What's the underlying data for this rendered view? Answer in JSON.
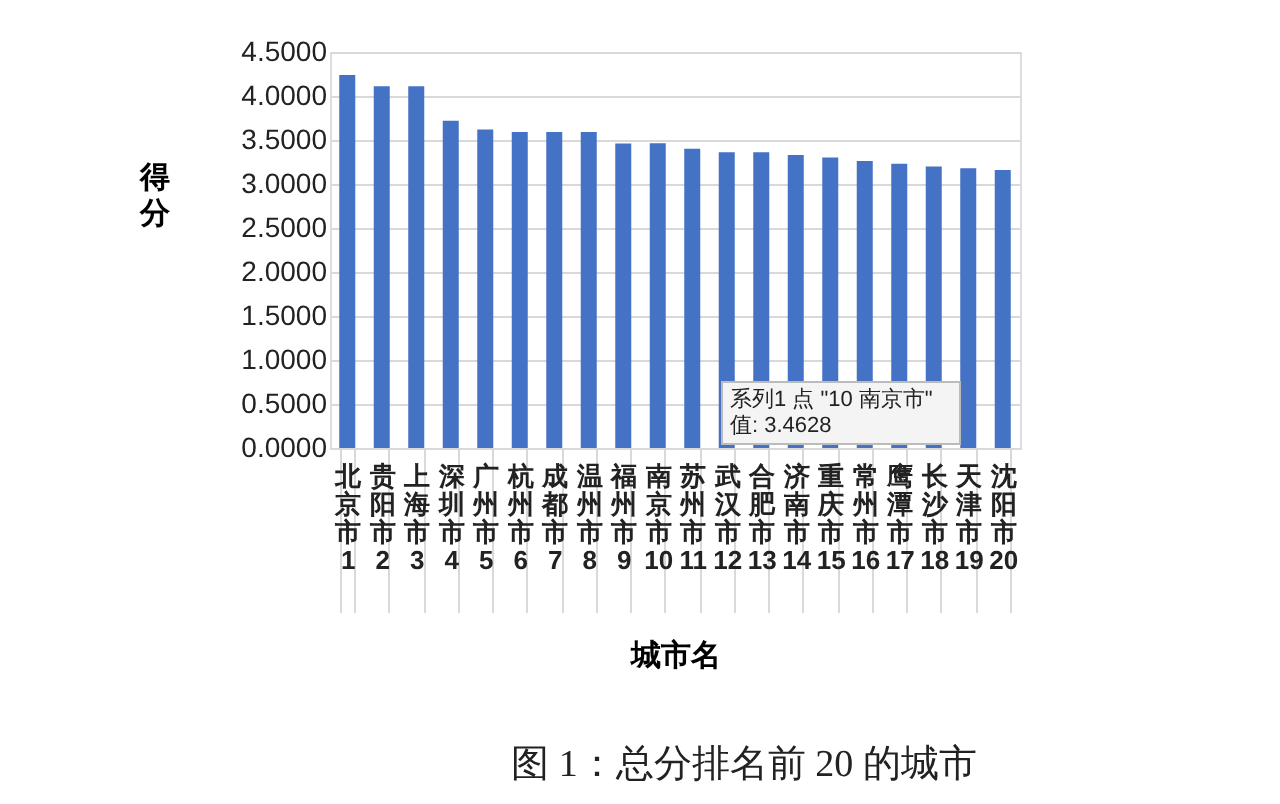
{
  "chart_data": {
    "type": "bar",
    "xlabel": "城市名",
    "ylabel": "得分",
    "categories": [
      "北京市\n1",
      "贵阳市\n2",
      "上海市\n3",
      "深圳市\n4",
      "广州市\n5",
      "杭州市\n6",
      "成都市\n7",
      "温州市\n8",
      "福州市\n9",
      "南京市\n10",
      "苏州市\n11",
      "武汉市\n12",
      "合肥市\n13",
      "济南市\n14",
      "重庆市\n15",
      "常州市\n16",
      "鹰潭市\n17",
      "长沙市\n18",
      "天津市\n19",
      "沈阳市\n20"
    ],
    "values": [
      4.24,
      4.11,
      4.11,
      3.72,
      3.62,
      3.59,
      3.59,
      3.59,
      3.46,
      3.4628,
      3.4,
      3.36,
      3.36,
      3.33,
      3.3,
      3.26,
      3.23,
      3.2,
      3.18,
      3.16
    ],
    "color": "#4472c4",
    "ylim": [
      0,
      4.5
    ],
    "yticks": [
      {
        "value": 0,
        "label": "0.0000"
      },
      {
        "value": 0.5,
        "label": "0.5000"
      },
      {
        "value": 1,
        "label": "1.0000"
      },
      {
        "value": 1.5,
        "label": "1.5000"
      },
      {
        "value": 2,
        "label": "2.0000"
      },
      {
        "value": 2.5,
        "label": "2.5000"
      },
      {
        "value": 3,
        "label": "3.0000"
      },
      {
        "value": 3.5,
        "label": "3.5000"
      },
      {
        "value": 4,
        "label": "4.0000"
      },
      {
        "value": 4.5,
        "label": "4.5000"
      }
    ],
    "grid": "y",
    "annotations": [
      "系列1 点 \"10 南京市\"\n值: 3.4628",
      "图 1：总分排名前 20 的城市"
    ]
  }
}
